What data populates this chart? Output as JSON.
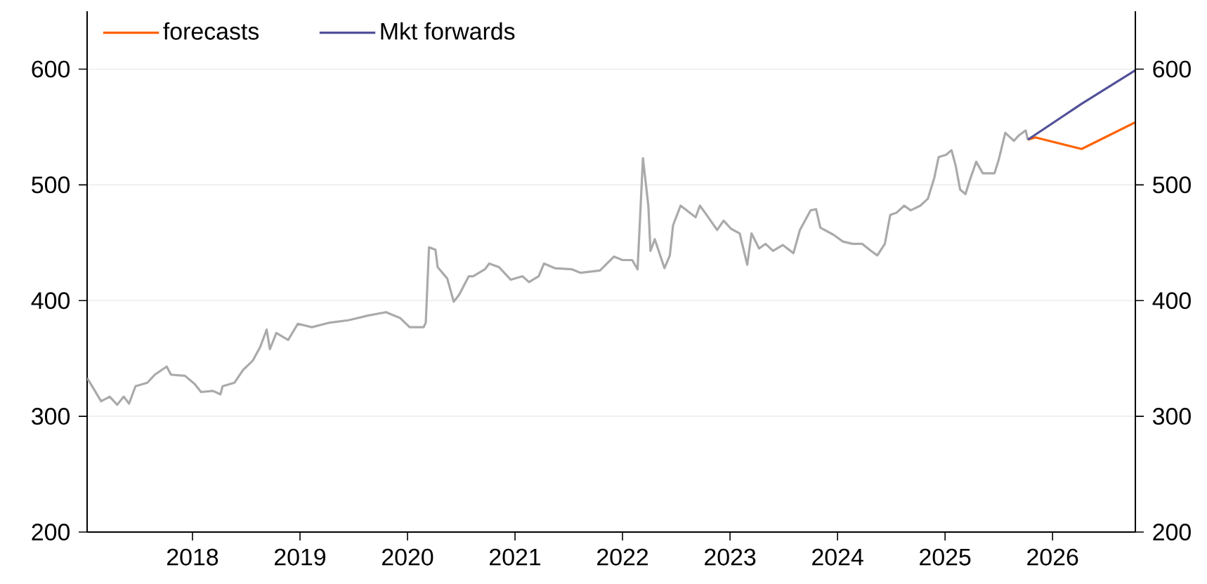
{
  "chart_data": {
    "type": "line",
    "xlim": [
      2017.02,
      2026.77
    ],
    "xticks": [
      2018,
      2019,
      2020,
      2021,
      2022,
      2023,
      2024,
      2025,
      2026
    ],
    "ylim": [
      200,
      650
    ],
    "yticks": [
      200,
      300,
      400,
      500,
      600
    ],
    "y2lim": [
      200,
      650
    ],
    "y2ticks": [
      200,
      300,
      400,
      500,
      600
    ],
    "grid": "y",
    "legend": "top left",
    "marker": "none",
    "line_style": "solid",
    "series": [
      {
        "color": "#aaaaaa",
        "x": [
          2017.02,
          2017.08,
          2017.15,
          2017.23,
          2017.3,
          2017.36,
          2017.41,
          2017.47,
          2017.58,
          2017.65,
          2017.76,
          2017.8,
          2017.93,
          2018.02,
          2018.08,
          2018.19,
          2018.26,
          2018.28,
          2018.39,
          2018.47,
          2018.56,
          2018.63,
          2018.69,
          2018.72,
          2018.78,
          2018.89,
          2018.98,
          2019.11,
          2019.28,
          2019.45,
          2019.54,
          2019.63,
          2019.8,
          2019.93,
          2020.02,
          2020.15,
          2020.17,
          2020.2,
          2020.26,
          2020.28,
          2020.37,
          2020.43,
          2020.48,
          2020.57,
          2020.61,
          2020.72,
          2020.76,
          2020.85,
          2020.96,
          2021.07,
          2021.13,
          2021.22,
          2021.27,
          2021.37,
          2021.53,
          2021.61,
          2021.79,
          2021.92,
          2022.0,
          2022.09,
          2022.14,
          2022.19,
          2022.24,
          2022.26,
          2022.3,
          2022.39,
          2022.44,
          2022.47,
          2022.54,
          2022.61,
          2022.68,
          2022.72,
          2022.79,
          2022.88,
          2022.94,
          2023.01,
          2023.09,
          2023.16,
          2023.2,
          2023.27,
          2023.33,
          2023.4,
          2023.49,
          2023.59,
          2023.65,
          2023.75,
          2023.8,
          2023.84,
          2023.96,
          2024.05,
          2024.14,
          2024.23,
          2024.31,
          2024.37,
          2024.44,
          2024.49,
          2024.55,
          2024.62,
          2024.68,
          2024.77,
          2024.84,
          2024.9,
          2024.94,
          2025.01,
          2025.06,
          2025.1,
          2025.14,
          2025.19,
          2025.23,
          2025.29,
          2025.35,
          2025.46,
          2025.5,
          2025.56,
          2025.64,
          2025.69,
          2025.75,
          2025.77
        ],
        "values": [
          333,
          324,
          313,
          317,
          310,
          317,
          311,
          326,
          329,
          336,
          343,
          336,
          335,
          328,
          321,
          322,
          319,
          326,
          329,
          340,
          348,
          360,
          375,
          358,
          372,
          366,
          380,
          377,
          381,
          383,
          385,
          387,
          390,
          385,
          377,
          377,
          381,
          446,
          444,
          429,
          419,
          399,
          405,
          421,
          421,
          427,
          432,
          429,
          418,
          421,
          416,
          421,
          432,
          428,
          427,
          424,
          426,
          438,
          435,
          435,
          427,
          523,
          482,
          443,
          453,
          428,
          439,
          465,
          482,
          477,
          472,
          482,
          473,
          461,
          469,
          462,
          458,
          431,
          458,
          445,
          449,
          443,
          448,
          441,
          461,
          478,
          479,
          463,
          457,
          451,
          449,
          449,
          443,
          439,
          449,
          474,
          476,
          482,
          478,
          482,
          488,
          506,
          524,
          526,
          530,
          516,
          496,
          492,
          504,
          520,
          510,
          510,
          522,
          545,
          538,
          543,
          547,
          539
        ]
      },
      {
        "name": "forecasts",
        "color": "#ff6200",
        "x": [
          2025.77,
          2025.84,
          2026.27,
          2026.77
        ],
        "values": [
          539,
          541,
          531,
          554
        ]
      },
      {
        "name": "Mkt forwards",
        "color": "#525199",
        "x": [
          2025.77,
          2026.27,
          2026.77
        ],
        "values": [
          539,
          570,
          599
        ]
      }
    ]
  }
}
